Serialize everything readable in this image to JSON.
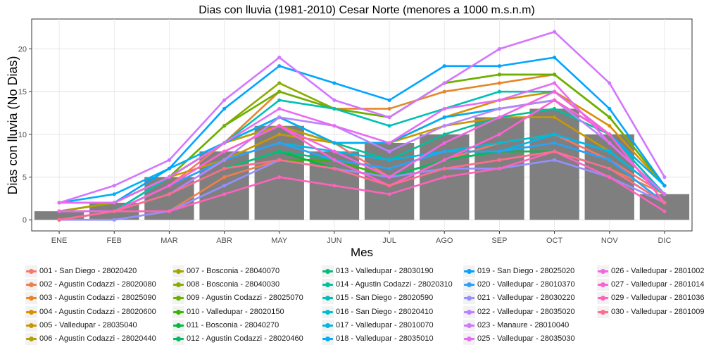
{
  "chart_data": {
    "type": "bar+line",
    "title": "Dias con lluvia (1981-2010) Cesar Norte (menores a 1000 m.s.n.m)",
    "xlabel": "Mes",
    "ylabel": "Dias con lluvia (No Dias)",
    "ylim": [
      -1.3,
      23.5
    ],
    "yticks": [
      0,
      5,
      10,
      15,
      20
    ],
    "grid": true,
    "legend_position": "bottom",
    "categories": [
      "ENE",
      "FEB",
      "MAR",
      "ABR",
      "MAY",
      "JUN",
      "JUL",
      "AGO",
      "SEP",
      "OCT",
      "NOV",
      "DIC"
    ],
    "bar_values": [
      1,
      2,
      5,
      8,
      11,
      8,
      9,
      10,
      12,
      13,
      10,
      3
    ],
    "bar_color": "#7f7f7f",
    "series": [
      {
        "name": "001 - San Diego - 28020420",
        "color": "#f8766d",
        "values": [
          0,
          1,
          4,
          9,
          11,
          9,
          5,
          7,
          9,
          10,
          7,
          3
        ]
      },
      {
        "name": "002 - Agustin Codazzi - 28020080",
        "color": "#ee7f4c",
        "values": [
          1,
          1,
          1,
          5,
          7,
          6,
          5,
          6,
          7,
          8,
          6,
          3
        ]
      },
      {
        "name": "003 - Agustin Codazzi - 28025090",
        "color": "#e4862a",
        "values": [
          1,
          2,
          5,
          9,
          15,
          13,
          13,
          15,
          16,
          17,
          12,
          4
        ]
      },
      {
        "name": "004 - Agustin Codazzi - 28020600",
        "color": "#d89000",
        "values": [
          1,
          2,
          5,
          9,
          11,
          9,
          9,
          12,
          14,
          15,
          11,
          4
        ]
      },
      {
        "name": "005 - Valledupar - 28035040",
        "color": "#c99800",
        "values": [
          1,
          2,
          5,
          7,
          10,
          9,
          9,
          11,
          12,
          12,
          8,
          3
        ]
      },
      {
        "name": "006 - Agustin Codazzi - 28020440",
        "color": "#b89f00",
        "values": [
          1,
          2,
          5,
          9,
          11,
          9,
          9,
          12,
          13,
          14,
          10,
          4
        ]
      },
      {
        "name": "007 - Bosconia - 28040070",
        "color": "#a3a500",
        "values": [
          1,
          2,
          5,
          9,
          12,
          9,
          9,
          12,
          13,
          14,
          10,
          3
        ]
      },
      {
        "name": "008 - Bosconia - 28040030",
        "color": "#8aac00",
        "values": [
          1,
          1,
          5,
          11,
          16,
          13,
          12,
          16,
          17,
          17,
          12,
          4
        ]
      },
      {
        "name": "009 - Agustin Codazzi - 28025070",
        "color": "#6bb100",
        "values": [
          1,
          1,
          5,
          11,
          15,
          13,
          12,
          16,
          17,
          17,
          12,
          4
        ]
      },
      {
        "name": "010 - Valledupar - 28020150",
        "color": "#39b600",
        "values": [
          0,
          1,
          3,
          6,
          7,
          7,
          5,
          7,
          8,
          8,
          6,
          2
        ]
      },
      {
        "name": "011 - Bosconia - 28040270",
        "color": "#00ba38",
        "values": [
          0,
          1,
          3,
          6,
          8,
          6,
          5,
          7,
          8,
          8,
          6,
          2
        ]
      },
      {
        "name": "012 - Agustin Codazzi - 28020460",
        "color": "#00bd5c",
        "values": [
          0,
          1,
          3,
          6,
          7,
          6,
          5,
          7,
          8,
          8,
          6,
          2
        ]
      },
      {
        "name": "013 - Valledupar - 28030190",
        "color": "#00bf7d",
        "values": [
          0,
          1,
          3,
          6,
          8,
          7,
          6,
          8,
          8,
          9,
          7,
          2
        ]
      },
      {
        "name": "014 - Agustin Codazzi - 28020310",
        "color": "#00c19a",
        "values": [
          1,
          1,
          5,
          9,
          12,
          9,
          7,
          10,
          12,
          13,
          10,
          3
        ]
      },
      {
        "name": "015 - San Diego - 28020590",
        "color": "#00c0b5",
        "values": [
          1,
          1,
          5,
          9,
          14,
          13,
          11,
          13,
          15,
          15,
          10,
          3
        ]
      },
      {
        "name": "016 - San Diego - 28020410",
        "color": "#00bdd0",
        "values": [
          1,
          1,
          4,
          7,
          9,
          7,
          6,
          8,
          9,
          10,
          8,
          3
        ]
      },
      {
        "name": "017 - Valledupar - 28010070",
        "color": "#00b8e7",
        "values": [
          1,
          1,
          4,
          7,
          9,
          8,
          7,
          8,
          8,
          10,
          8,
          3
        ]
      },
      {
        "name": "018 - Valledupar - 28035010",
        "color": "#00b0f6",
        "values": [
          2,
          3,
          6,
          9,
          12,
          9,
          9,
          12,
          13,
          14,
          10,
          4
        ]
      },
      {
        "name": "019 - San Diego - 28025020",
        "color": "#00a5ff",
        "values": [
          2,
          2,
          6,
          13,
          18,
          16,
          14,
          18,
          18,
          19,
          13,
          4
        ]
      },
      {
        "name": "020 - Valledupar - 28010370",
        "color": "#2ea0f7",
        "values": [
          1,
          1,
          4,
          7,
          9,
          7,
          6,
          8,
          8,
          9,
          7,
          2
        ]
      },
      {
        "name": "021 - Valledupar - 28030220",
        "color": "#9590ff",
        "values": [
          0,
          0,
          1,
          4,
          7,
          6,
          5,
          6,
          6,
          7,
          5,
          2
        ]
      },
      {
        "name": "022 - Valledupar - 28035020",
        "color": "#b983ff",
        "values": [
          1,
          1,
          3,
          7,
          12,
          11,
          8,
          11,
          13,
          14,
          9,
          3
        ]
      },
      {
        "name": "023 - Manaure - 28010040",
        "color": "#d376ff",
        "values": [
          2,
          4,
          7,
          14,
          19,
          14,
          12,
          16,
          20,
          22,
          16,
          5
        ]
      },
      {
        "name": "025 - Valledupar - 28035030",
        "color": "#e76bf3",
        "values": [
          2,
          2,
          5,
          9,
          13,
          11,
          9,
          13,
          14,
          16,
          9,
          3
        ]
      },
      {
        "name": "026 - Valledupar - 2801002",
        "color": "#f564e3",
        "values": [
          1,
          1,
          4,
          8,
          11,
          8,
          5,
          9,
          12,
          15,
          10,
          2
        ]
      },
      {
        "name": "027 - Valledupar - 2801014",
        "color": "#fd61d1",
        "values": [
          0,
          1,
          4,
          8,
          11,
          7,
          4,
          7,
          10,
          14,
          10,
          2
        ]
      },
      {
        "name": "029 - Valledupar - 2801036",
        "color": "#ff62bc",
        "values": [
          0,
          1,
          1,
          3,
          5,
          4,
          3,
          5,
          6,
          8,
          5,
          1
        ]
      },
      {
        "name": "030 - Valledupar - 2801009",
        "color": "#ff6c91",
        "values": [
          0,
          1,
          3,
          6,
          7,
          6,
          4,
          6,
          7,
          8,
          6,
          2
        ]
      }
    ]
  }
}
